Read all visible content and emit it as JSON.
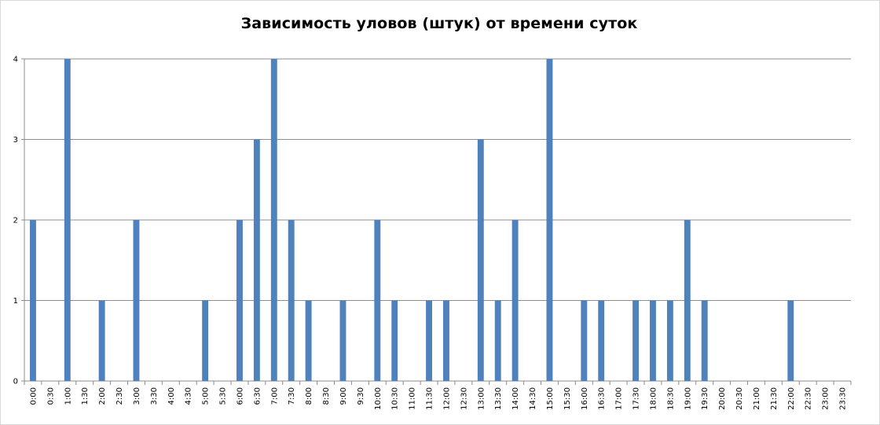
{
  "chart_data": {
    "type": "bar",
    "title": "Зависимость уловов (штук) от времени суток",
    "xlabel": "",
    "ylabel": "",
    "ylim": [
      0,
      4
    ],
    "yticks": [
      "0",
      "1",
      "2",
      "3",
      "4"
    ],
    "grid": true,
    "legend": "none",
    "bar_color": "#4f81bd",
    "categories": [
      "0:00",
      "0:30",
      "1:00",
      "1:30",
      "2:00",
      "2:30",
      "3:00",
      "3:30",
      "4:00",
      "4:30",
      "5:00",
      "5:30",
      "6:00",
      "6:30",
      "7:00",
      "7:30",
      "8:00",
      "8:30",
      "9:00",
      "9:30",
      "10:00",
      "10:30",
      "11:00",
      "11:30",
      "12:00",
      "12:30",
      "13:00",
      "13:30",
      "14:00",
      "14:30",
      "15:00",
      "15:30",
      "16:00",
      "16:30",
      "17:00",
      "17:30",
      "18:00",
      "18:30",
      "19:00",
      "19:30",
      "20:00",
      "20:30",
      "21:00",
      "21:30",
      "22:00",
      "22:30",
      "23:00",
      "23:30"
    ],
    "values": [
      2,
      0,
      4,
      0,
      1,
      0,
      2,
      0,
      0,
      0,
      1,
      0,
      2,
      3,
      4,
      2,
      1,
      0,
      1,
      0,
      2,
      1,
      0,
      1,
      1,
      0,
      3,
      1,
      2,
      0,
      4,
      0,
      1,
      1,
      0,
      1,
      1,
      1,
      2,
      1,
      0,
      0,
      0,
      0,
      1,
      0,
      0,
      0
    ]
  }
}
